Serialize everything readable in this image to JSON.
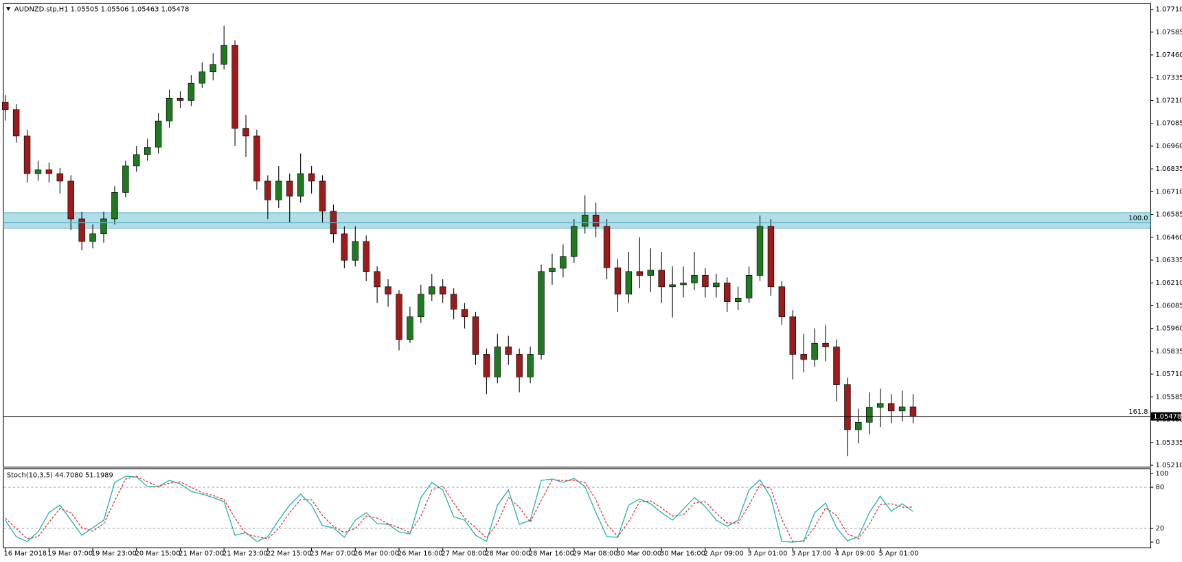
{
  "chart_data": [
    {
      "type": "candlestick",
      "title": "AUDNZD.stp,H1  1.05505 1.05506 1.05463 1.05478",
      "categories": [
        "16 Mar 2018",
        null,
        null,
        null,
        "19 Mar 07:00",
        null,
        null,
        null,
        "19 Mar 23:00",
        null,
        null,
        null,
        "20 Mar 15:00",
        null,
        null,
        null,
        "21 Mar 07:00",
        null,
        null,
        null,
        "21 Mar 23:00",
        null,
        null,
        null,
        "22 Mar 15:00",
        null,
        null,
        null,
        "23 Mar 07:00",
        null,
        null,
        null,
        "26 Mar 00:00",
        null,
        null,
        null,
        "26 Mar 16:00",
        null,
        null,
        null,
        "27 Mar 08:00",
        null,
        null,
        null,
        "28 Mar 00:00",
        null,
        null,
        null,
        "28 Mar 16:00",
        null,
        null,
        null,
        "29 Mar 08:00",
        null,
        null,
        null,
        "30 Mar 00:00",
        null,
        null,
        null,
        "30 Mar 16:00",
        null,
        null,
        null,
        "2 Apr 09:00",
        null,
        null,
        null,
        "3 Apr 01:00",
        null,
        null,
        null,
        "3 Apr 17:00",
        null,
        null,
        null,
        "4 Apr 09:00",
        null,
        null,
        null,
        "5 Apr 01:00",
        null,
        null,
        null
      ],
      "open": [
        1.072,
        1.0716,
        1.07016,
        1.06809,
        1.0683,
        1.06809,
        1.06768,
        1.06561,
        1.06437,
        1.06479,
        1.06561,
        1.06706,
        1.06851,
        1.06913,
        1.06954,
        1.07098,
        1.07222,
        1.0721,
        1.07305,
        1.07367,
        1.07408,
        1.07512,
        1.07057,
        1.07016,
        1.06768,
        1.06665,
        1.06768,
        1.06685,
        1.06809,
        1.06768,
        1.06603,
        1.06479,
        1.06334,
        1.06437,
        1.06272,
        1.06189,
        1.06148,
        1.059,
        1.06024,
        1.06148,
        1.06189,
        1.06148,
        1.06065,
        1.06024,
        1.05818,
        1.05694,
        1.05859,
        1.05818,
        1.05694,
        1.05818,
        1.06272,
        1.0629,
        1.06355,
        1.0652,
        1.06582,
        1.0652,
        1.06293,
        1.06148,
        1.06272,
        1.06251,
        1.0628,
        1.06189,
        1.062,
        1.0621,
        1.06251,
        1.06189,
        1.0621,
        1.06107,
        1.06127,
        1.06251,
        1.0652,
        1.06189,
        1.06024,
        1.05818,
        1.0579,
        1.05879,
        1.05859,
        1.05652,
        1.05404,
        1.05446,
        1.05528,
        1.05549,
        1.05508,
        1.0553
      ],
      "high": [
        1.0724,
        1.0719,
        1.0705,
        1.0688,
        1.0687,
        1.0684,
        1.068,
        1.066,
        1.0653,
        1.066,
        1.0674,
        1.0688,
        1.0696,
        1.07,
        1.0714,
        1.0727,
        1.0726,
        1.0735,
        1.0742,
        1.0747,
        1.0762,
        1.0754,
        1.0713,
        1.0705,
        1.068,
        1.0685,
        1.0681,
        1.0692,
        1.0685,
        1.068,
        1.0664,
        1.0652,
        1.0652,
        1.0647,
        1.063,
        1.0623,
        1.0617,
        1.0608,
        1.062,
        1.0626,
        1.0623,
        1.0618,
        1.061,
        1.0605,
        1.0585,
        1.0593,
        1.0592,
        1.0585,
        1.0586,
        1.0631,
        1.0637,
        1.0642,
        1.0656,
        1.0669,
        1.0665,
        1.0656,
        1.0634,
        1.0638,
        1.0646,
        1.064,
        1.0638,
        1.063,
        1.063,
        1.0638,
        1.0629,
        1.0626,
        1.0624,
        1.0619,
        1.063,
        1.0658,
        1.0656,
        1.0622,
        1.0606,
        1.0593,
        1.0596,
        1.0598,
        1.059,
        1.0569,
        1.0552,
        1.0561,
        1.0563,
        1.056,
        1.0562,
        1.056
      ],
      "low": [
        1.071,
        1.0698,
        1.0676,
        1.0677,
        1.0676,
        1.067,
        1.065,
        1.0639,
        1.064,
        1.0643,
        1.0653,
        1.0668,
        1.0682,
        1.0688,
        1.0692,
        1.0706,
        1.0717,
        1.0718,
        1.0728,
        1.0732,
        1.0738,
        1.0696,
        1.069,
        1.0672,
        1.0656,
        1.0662,
        1.0654,
        1.0665,
        1.067,
        1.0654,
        1.0643,
        1.0629,
        1.063,
        1.0622,
        1.061,
        1.0608,
        1.0584,
        1.0588,
        1.0599,
        1.0611,
        1.061,
        1.0601,
        1.0596,
        1.0576,
        1.056,
        1.0566,
        1.0576,
        1.0561,
        1.0566,
        1.0579,
        1.062,
        1.0624,
        1.0632,
        1.0648,
        1.0646,
        1.0623,
        1.0605,
        1.061,
        1.0618,
        1.0616,
        1.061,
        1.0602,
        1.0613,
        1.0617,
        1.0613,
        1.0613,
        1.0605,
        1.0606,
        1.061,
        1.0622,
        1.0614,
        1.0598,
        1.0568,
        1.0572,
        1.0575,
        1.0578,
        1.0556,
        1.0526,
        1.0533,
        1.0538,
        1.0542,
        1.0544,
        1.0545,
        1.0544
      ],
      "close": [
        1.0716,
        1.07016,
        1.06809,
        1.0683,
        1.06809,
        1.06768,
        1.06561,
        1.06437,
        1.06479,
        1.06561,
        1.06706,
        1.06851,
        1.06913,
        1.06954,
        1.07098,
        1.07222,
        1.0721,
        1.07305,
        1.07367,
        1.07408,
        1.07512,
        1.07057,
        1.07016,
        1.06768,
        1.06665,
        1.06768,
        1.06685,
        1.06809,
        1.06768,
        1.06603,
        1.06479,
        1.06334,
        1.06437,
        1.06272,
        1.06189,
        1.06148,
        1.059,
        1.06024,
        1.06148,
        1.06189,
        1.06148,
        1.06065,
        1.06024,
        1.05818,
        1.05694,
        1.05859,
        1.05818,
        1.05694,
        1.05818,
        1.06272,
        1.0629,
        1.06355,
        1.0652,
        1.06582,
        1.0652,
        1.06293,
        1.06148,
        1.06272,
        1.06251,
        1.0628,
        1.06189,
        1.062,
        1.0621,
        1.06251,
        1.06189,
        1.0621,
        1.06107,
        1.06127,
        1.06251,
        1.0652,
        1.06189,
        1.06024,
        1.05818,
        1.0579,
        1.05879,
        1.05859,
        1.05652,
        1.05404,
        1.05446,
        1.05528,
        1.05549,
        1.05508,
        1.0553,
        1.05478
      ],
      "up_color": "#1f7a1f",
      "down_color": "#9e1b1b",
      "wick_color": "#000000",
      "ylim": [
        1.0521,
        1.0771
      ],
      "yticks": [
        {
          "value": 1.0771,
          "label": "1.07710"
        },
        {
          "value": 1.07585,
          "label": "1.07585"
        },
        {
          "value": 1.0746,
          "label": "1.07460"
        },
        {
          "value": 1.07335,
          "label": "1.07335"
        },
        {
          "value": 1.0721,
          "label": "1.07210"
        },
        {
          "value": 1.07085,
          "label": "1.07085"
        },
        {
          "value": 1.0696,
          "label": "1.06960"
        },
        {
          "value": 1.06835,
          "label": "1.06835"
        },
        {
          "value": 1.0671,
          "label": "1.06710"
        },
        {
          "value": 1.06585,
          "label": "1.06585"
        },
        {
          "value": 1.0646,
          "label": "1.06460"
        },
        {
          "value": 1.06335,
          "label": "1.06335"
        },
        {
          "value": 1.0621,
          "label": "1.06210"
        },
        {
          "value": 1.06085,
          "label": "1.06085"
        },
        {
          "value": 1.0596,
          "label": "1.05960"
        },
        {
          "value": 1.05835,
          "label": "1.05835"
        },
        {
          "value": 1.0571,
          "label": "1.05710"
        },
        {
          "value": 1.05585,
          "label": "1.05585"
        },
        {
          "value": 1.0546,
          "label": "1.05460"
        },
        {
          "value": 1.05335,
          "label": "1.05335"
        },
        {
          "value": 1.0521,
          "label": "1.05210"
        }
      ],
      "zone": {
        "top": 1.06595,
        "bottom": 1.0651,
        "color": "#b0dde6"
      },
      "levels": [
        {
          "label": "100.0",
          "price": 1.0654
        },
        {
          "label": "161.8",
          "price": 1.05478
        }
      ],
      "last_price": 1.05478
    },
    {
      "type": "line",
      "title": "Stoch(10,3,5) 44.7080 51.1989",
      "series": [
        {
          "color": "#20b2aa",
          "values": [
            32,
            8,
            1,
            15,
            43,
            54,
            32,
            10,
            21,
            32,
            87,
            96,
            95,
            81,
            81,
            90,
            85,
            74,
            70,
            65,
            59,
            10,
            14,
            1,
            8,
            32,
            54,
            70,
            54,
            24,
            21,
            7,
            32,
            43,
            27,
            26,
            15,
            12,
            65,
            87,
            76,
            37,
            32,
            10,
            1,
            54,
            76,
            26,
            32,
            90,
            92,
            87,
            93,
            81,
            43,
            8,
            7,
            54,
            63,
            56,
            43,
            32,
            48,
            65,
            52,
            32,
            23,
            32,
            76,
            91,
            65,
            1,
            0,
            2,
            43,
            57,
            21,
            2,
            8,
            43,
            67,
            45,
            56,
            44.708
          ]
        },
        {
          "color": "#e8312f",
          "dashed": true,
          "values": [
            35,
            20,
            5,
            8,
            29,
            49,
            43,
            21,
            16,
            27,
            60,
            92,
            96,
            88,
            81,
            86,
            88,
            80,
            72,
            68,
            62,
            35,
            12,
            8,
            5,
            20,
            43,
            62,
            62,
            39,
            23,
            14,
            20,
            38,
            35,
            27,
            21,
            14,
            38,
            76,
            82,
            57,
            35,
            21,
            6,
            28,
            65,
            51,
            29,
            61,
            91,
            90,
            90,
            87,
            62,
            26,
            8,
            30,
            59,
            60,
            50,
            38,
            40,
            57,
            59,
            42,
            28,
            28,
            54,
            84,
            78,
            33,
            1,
            1,
            22,
            50,
            39,
            12,
            5,
            26,
            55,
            56,
            51,
            51.1989
          ]
        }
      ],
      "ylim": [
        0,
        100
      ],
      "yticks": [
        0,
        20,
        80,
        100
      ],
      "levels": [
        20,
        80
      ]
    }
  ]
}
